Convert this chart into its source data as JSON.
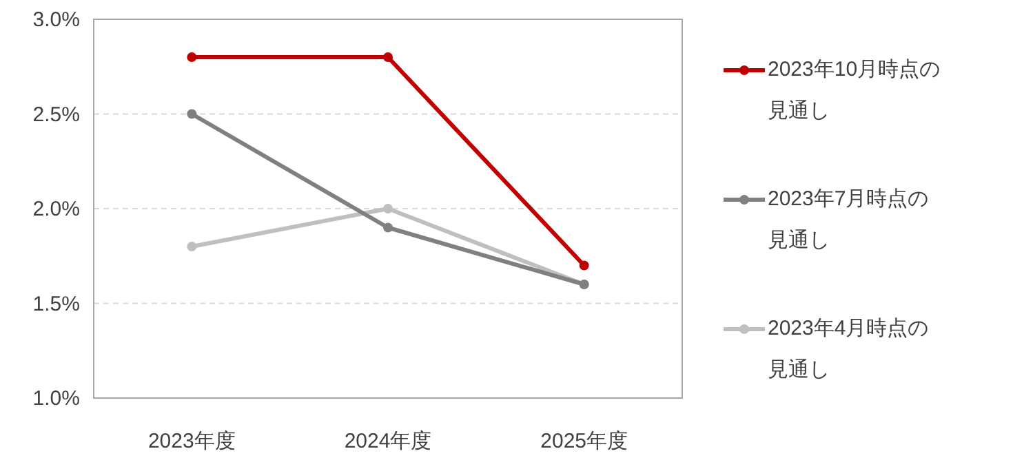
{
  "chart_data": {
    "type": "line",
    "categories": [
      "2023年度",
      "2024年度",
      "2025年度"
    ],
    "series": [
      {
        "name": "2023年10月時点の見通し",
        "color": "#c00000",
        "values": [
          2.8,
          2.8,
          1.7
        ]
      },
      {
        "name": "2023年7月時点の見通し",
        "color": "#808080",
        "values": [
          2.5,
          1.9,
          1.6
        ]
      },
      {
        "name": "2023年4月時点の見通し",
        "color": "#bfbfbf",
        "values": [
          1.8,
          2.0,
          1.6
        ]
      }
    ],
    "ylim": [
      1.0,
      3.0
    ],
    "yticks": [
      {
        "value": 1.0,
        "label": "1.0%"
      },
      {
        "value": 1.5,
        "label": "1.5%"
      },
      {
        "value": 2.0,
        "label": "2.0%"
      },
      {
        "value": 2.5,
        "label": "2.5%"
      },
      {
        "value": 3.0,
        "label": "3.0%"
      }
    ],
    "grid": "y",
    "legend": "right",
    "marker": "circle",
    "line_style": "solid"
  }
}
